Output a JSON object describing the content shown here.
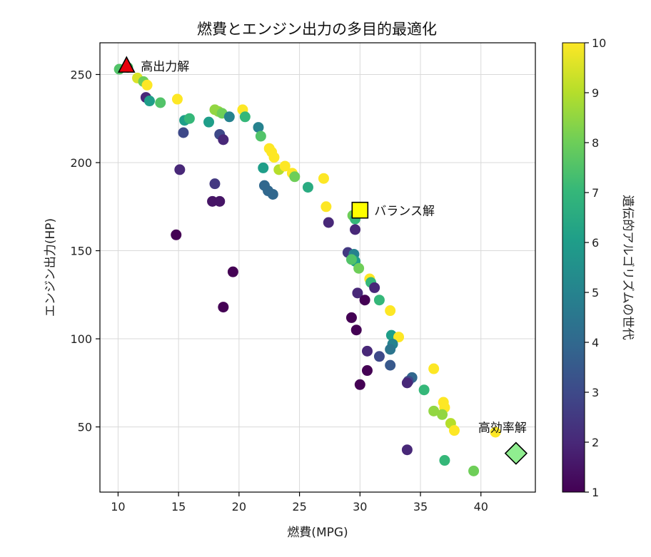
{
  "chart_data": {
    "type": "scatter",
    "title": "燃費とエンジン出力の多目的最適化",
    "xlabel": "燃費(MPG)",
    "ylabel": "エンジン出力(HP)",
    "xlim": [
      8.5,
      44.5
    ],
    "ylim": [
      13,
      268
    ],
    "x_ticks": [
      "10",
      "15",
      "20",
      "25",
      "30",
      "35",
      "40"
    ],
    "y_ticks": [
      "50",
      "100",
      "150",
      "200",
      "250"
    ],
    "grid": true,
    "colorbar": {
      "label": "遺伝的アルゴリズムの世代",
      "min": 1,
      "max": 10,
      "ticks": [
        "1",
        "2",
        "3",
        "4",
        "5",
        "6",
        "7",
        "8",
        "9",
        "10"
      ],
      "colormap": "viridis"
    },
    "points": [
      {
        "x": 10.1,
        "y": 253,
        "g": 7.5
      },
      {
        "x": 10.8,
        "y": 254,
        "g": 7.5
      },
      {
        "x": 11.6,
        "y": 248,
        "g": 9.5
      },
      {
        "x": 12.1,
        "y": 246,
        "g": 8
      },
      {
        "x": 12.4,
        "y": 244,
        "g": 10
      },
      {
        "x": 12.3,
        "y": 237,
        "g": 2
      },
      {
        "x": 12.6,
        "y": 235,
        "g": 6
      },
      {
        "x": 13.5,
        "y": 234,
        "g": 7.5
      },
      {
        "x": 14.9,
        "y": 236,
        "g": 10
      },
      {
        "x": 15.5,
        "y": 224,
        "g": 6
      },
      {
        "x": 15.9,
        "y": 225,
        "g": 7
      },
      {
        "x": 15.4,
        "y": 217,
        "g": 3
      },
      {
        "x": 15.1,
        "y": 196,
        "g": 2
      },
      {
        "x": 14.8,
        "y": 159,
        "g": 1
      },
      {
        "x": 17.5,
        "y": 223,
        "g": 6
      },
      {
        "x": 18.0,
        "y": 230,
        "g": 8.5
      },
      {
        "x": 18.3,
        "y": 229,
        "g": 8.5
      },
      {
        "x": 18.6,
        "y": 228,
        "g": 8
      },
      {
        "x": 19.2,
        "y": 226,
        "g": 5
      },
      {
        "x": 18.4,
        "y": 216,
        "g": 3
      },
      {
        "x": 18.7,
        "y": 213,
        "g": 2
      },
      {
        "x": 18.0,
        "y": 188,
        "g": 2.5
      },
      {
        "x": 17.8,
        "y": 178,
        "g": 1.5
      },
      {
        "x": 18.4,
        "y": 178,
        "g": 1.5
      },
      {
        "x": 19.5,
        "y": 138,
        "g": 1
      },
      {
        "x": 18.7,
        "y": 118,
        "g": 1
      },
      {
        "x": 20.3,
        "y": 230,
        "g": 10
      },
      {
        "x": 20.5,
        "y": 226,
        "g": 7
      },
      {
        "x": 21.6,
        "y": 220,
        "g": 5
      },
      {
        "x": 21.8,
        "y": 215,
        "g": 7.5
      },
      {
        "x": 22.5,
        "y": 208,
        "g": 10
      },
      {
        "x": 22.7,
        "y": 206,
        "g": 10
      },
      {
        "x": 22.9,
        "y": 203,
        "g": 10
      },
      {
        "x": 22.0,
        "y": 197,
        "g": 6
      },
      {
        "x": 23.3,
        "y": 196,
        "g": 9
      },
      {
        "x": 23.8,
        "y": 198,
        "g": 10
      },
      {
        "x": 24.4,
        "y": 194,
        "g": 10
      },
      {
        "x": 24.6,
        "y": 192,
        "g": 8
      },
      {
        "x": 22.1,
        "y": 187,
        "g": 4
      },
      {
        "x": 22.4,
        "y": 184,
        "g": 4
      },
      {
        "x": 22.8,
        "y": 182,
        "g": 4
      },
      {
        "x": 25.7,
        "y": 186,
        "g": 6.5
      },
      {
        "x": 27.0,
        "y": 191,
        "g": 10
      },
      {
        "x": 27.2,
        "y": 175,
        "g": 10
      },
      {
        "x": 27.4,
        "y": 166,
        "g": 2
      },
      {
        "x": 29.4,
        "y": 170,
        "g": 8
      },
      {
        "x": 29.6,
        "y": 168,
        "g": 7
      },
      {
        "x": 29.6,
        "y": 162,
        "g": 2
      },
      {
        "x": 29.0,
        "y": 149,
        "g": 2.5
      },
      {
        "x": 29.5,
        "y": 148,
        "g": 5
      },
      {
        "x": 29.6,
        "y": 144,
        "g": 6
      },
      {
        "x": 29.3,
        "y": 145,
        "g": 7.5
      },
      {
        "x": 29.9,
        "y": 140,
        "g": 8
      },
      {
        "x": 30.8,
        "y": 134,
        "g": 10
      },
      {
        "x": 30.9,
        "y": 132,
        "g": 7
      },
      {
        "x": 31.2,
        "y": 129,
        "g": 2
      },
      {
        "x": 29.8,
        "y": 126,
        "g": 2
      },
      {
        "x": 30.4,
        "y": 122,
        "g": 1
      },
      {
        "x": 31.6,
        "y": 122,
        "g": 7
      },
      {
        "x": 32.5,
        "y": 116,
        "g": 10
      },
      {
        "x": 29.3,
        "y": 112,
        "g": 1
      },
      {
        "x": 29.7,
        "y": 105,
        "g": 1
      },
      {
        "x": 32.6,
        "y": 102,
        "g": 6
      },
      {
        "x": 33.2,
        "y": 101,
        "g": 10
      },
      {
        "x": 32.7,
        "y": 97,
        "g": 5
      },
      {
        "x": 32.5,
        "y": 94,
        "g": 4.5
      },
      {
        "x": 30.6,
        "y": 93,
        "g": 2
      },
      {
        "x": 31.6,
        "y": 90,
        "g": 3
      },
      {
        "x": 32.5,
        "y": 85,
        "g": 3.5
      },
      {
        "x": 30.6,
        "y": 82,
        "g": 1
      },
      {
        "x": 30.0,
        "y": 74,
        "g": 1
      },
      {
        "x": 34.3,
        "y": 78,
        "g": 4
      },
      {
        "x": 34.0,
        "y": 76,
        "g": 3
      },
      {
        "x": 33.9,
        "y": 75,
        "g": 2
      },
      {
        "x": 35.3,
        "y": 71,
        "g": 7
      },
      {
        "x": 36.1,
        "y": 83,
        "g": 10
      },
      {
        "x": 36.9,
        "y": 64,
        "g": 10
      },
      {
        "x": 37.0,
        "y": 61,
        "g": 10
      },
      {
        "x": 36.1,
        "y": 59,
        "g": 8.5
      },
      {
        "x": 36.8,
        "y": 57,
        "g": 8.5
      },
      {
        "x": 37.5,
        "y": 52,
        "g": 9
      },
      {
        "x": 37.8,
        "y": 48,
        "g": 10
      },
      {
        "x": 41.2,
        "y": 47,
        "g": 10
      },
      {
        "x": 33.9,
        "y": 37,
        "g": 2
      },
      {
        "x": 37.0,
        "y": 31,
        "g": 7
      },
      {
        "x": 39.4,
        "y": 25,
        "g": 8
      }
    ],
    "highlights": [
      {
        "label": "高出力解",
        "x": 10.7,
        "y": 255,
        "shape": "triangle",
        "color": "#e8000b"
      },
      {
        "label": "バランス解",
        "x": 30.0,
        "y": 173,
        "shape": "square",
        "color": "#ffff00"
      },
      {
        "label": "高効率解",
        "x": 42.9,
        "y": 35,
        "shape": "diamond",
        "color": "#90ee90"
      }
    ]
  }
}
